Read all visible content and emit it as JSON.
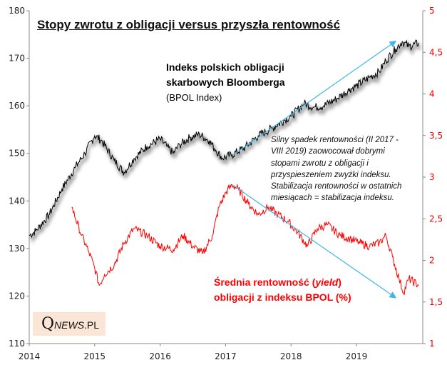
{
  "chart_data": {
    "type": "line",
    "title": "Stopy zwrotu z obligacji versus przyszła rentowność",
    "x_ticks": [
      "2014",
      "2015",
      "2016",
      "2017",
      "2018",
      "2019"
    ],
    "xlim": [
      2014,
      2020
    ],
    "y_left": {
      "ylim": [
        110,
        180
      ],
      "ticks": [
        "110",
        "120",
        "130",
        "140",
        "150",
        "160",
        "170",
        "180"
      ]
    },
    "y_right": {
      "ylim": [
        1,
        5
      ],
      "ticks": [
        "1",
        "1,5",
        "2",
        "2,5",
        "3",
        "3,5",
        "4",
        "4,5",
        "5"
      ],
      "color": "#ff0000"
    },
    "series": [
      {
        "name": "Indeks polskich obligacji skarbowych Bloomberga (BPOL Index)",
        "axis": "left",
        "color": "#000000",
        "x": [
          2014.0,
          2014.1,
          2014.3,
          2014.5,
          2014.7,
          2014.85,
          2015.0,
          2015.1,
          2015.3,
          2015.45,
          2015.6,
          2015.8,
          2016.0,
          2016.1,
          2016.2,
          2016.3,
          2016.45,
          2016.6,
          2016.75,
          2016.85,
          2016.95,
          2017.1,
          2017.3,
          2017.5,
          2017.7,
          2017.9,
          2018.0,
          2018.2,
          2018.35,
          2018.5,
          2018.7,
          2018.9,
          2019.0,
          2019.2,
          2019.35,
          2019.45,
          2019.6,
          2019.7,
          2019.8,
          2019.95
        ],
        "y": [
          132.7,
          133.7,
          137,
          142.5,
          147,
          150,
          153.7,
          152.8,
          148.5,
          146,
          148.9,
          151.5,
          153,
          151.5,
          150,
          151.8,
          153.3,
          154,
          152.7,
          150.7,
          149,
          149.7,
          151.3,
          153.7,
          155.2,
          157,
          157.8,
          160.5,
          159.7,
          160,
          161.5,
          163.5,
          164.2,
          166,
          167.2,
          169.5,
          172,
          173.5,
          172.5,
          173.2
        ]
      },
      {
        "name": "Średnia rentowność (yield) obligacji z indeksu BPOL (%)",
        "axis": "right",
        "color": "#ff0000",
        "x": [
          2014.65,
          2014.8,
          2014.9,
          2015.0,
          2015.07,
          2015.15,
          2015.3,
          2015.45,
          2015.6,
          2015.8,
          2016.0,
          2016.2,
          2016.35,
          2016.5,
          2016.65,
          2016.8,
          2016.9,
          2017.0,
          2017.1,
          2017.2,
          2017.35,
          2017.5,
          2017.65,
          2017.8,
          2017.95,
          2018.1,
          2018.25,
          2018.4,
          2018.55,
          2018.75,
          2018.9,
          2019.05,
          2019.2,
          2019.35,
          2019.45,
          2019.55,
          2019.65,
          2019.72,
          2019.8,
          2019.95
        ],
        "y": [
          2.64,
          2.3,
          2.12,
          1.91,
          1.7,
          1.83,
          1.95,
          2.21,
          2.38,
          2.3,
          2.17,
          2.13,
          2.3,
          2.17,
          2.08,
          2.3,
          2.64,
          2.81,
          2.91,
          2.85,
          2.68,
          2.55,
          2.64,
          2.55,
          2.47,
          2.34,
          2.17,
          2.38,
          2.43,
          2.3,
          2.26,
          2.21,
          2.17,
          2.21,
          2.3,
          2.04,
          1.78,
          1.61,
          1.78,
          1.7
        ]
      }
    ],
    "arrows": [
      {
        "axis": "left",
        "from": [
          2017.12,
          149.7
        ],
        "to": [
          2019.6,
          173.6
        ],
        "color": "#3fb6e8"
      },
      {
        "axis": "right",
        "from": [
          2017.12,
          2.9
        ],
        "to": [
          2019.6,
          1.55
        ],
        "color": "#3fb6e8"
      }
    ],
    "annotations": {
      "index_label_line1": "Indeks polskich obligacji",
      "index_label_line2": "skarbowych Bloomberga",
      "index_label_sub": "(BPOL Index)",
      "comment": [
        "Silny spadek rentowności  (II 2017 -",
        "VIII  2019) zaowocował dobrymi",
        "stopami zwrotu z obligacji i",
        "przyspieszeniem  zwyżki indeksu.",
        "Stabilizacja rentowności  w ostatnich",
        "miesiącach  = stabilizacja indeksu."
      ],
      "yield_label_pre": "Średnia rentowność (",
      "yield_label_italic": "yield",
      "yield_label_post": ")",
      "yield_label_line2": "obligacji z indeksu BPOL (%)"
    }
  },
  "logo": {
    "q": "Q",
    "rest": "NEWS",
    "suffix": ".PL"
  }
}
